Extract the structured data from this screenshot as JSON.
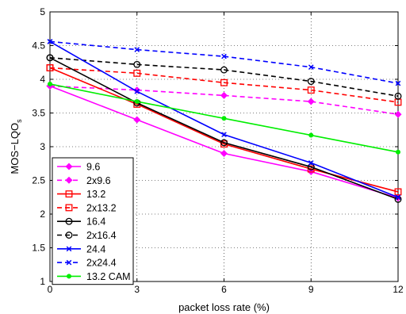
{
  "chart_data": {
    "type": "line",
    "xlabel": "packet loss rate (%)",
    "ylabel": "MOS−LQO",
    "ylabel_subscript": "s",
    "x": [
      0,
      3,
      6,
      9,
      12
    ],
    "xticks": [
      "0",
      "3",
      "6",
      "9",
      "12"
    ],
    "yticks": [
      "1",
      "1.5",
      "2",
      "2.5",
      "3",
      "3.5",
      "4",
      "4.5",
      "5"
    ],
    "xlim": [
      0,
      12
    ],
    "ylim": [
      1,
      5
    ],
    "grid": true,
    "legend_position": "bottom-left",
    "series": [
      {
        "name": "9.6",
        "values": [
          3.9,
          3.4,
          2.9,
          2.63,
          2.24
        ],
        "color": "#ff00ff",
        "dash": "solid",
        "marker": "diamond"
      },
      {
        "name": "2x9.6",
        "values": [
          3.9,
          3.84,
          3.76,
          3.67,
          3.48
        ],
        "color": "#ff00ff",
        "dash": "dashed",
        "marker": "diamond"
      },
      {
        "name": "13.2",
        "values": [
          4.17,
          3.63,
          3.04,
          2.67,
          2.33
        ],
        "color": "#ff0000",
        "dash": "solid",
        "marker": "square"
      },
      {
        "name": "2x13.2",
        "values": [
          4.17,
          4.09,
          3.95,
          3.84,
          3.66
        ],
        "color": "#ff0000",
        "dash": "dashed",
        "marker": "square"
      },
      {
        "name": "16.4",
        "values": [
          4.32,
          3.65,
          3.06,
          2.7,
          2.22
        ],
        "color": "#000000",
        "dash": "solid",
        "marker": "circle"
      },
      {
        "name": "2x16.4",
        "values": [
          4.32,
          4.22,
          4.14,
          3.97,
          3.75
        ],
        "color": "#000000",
        "dash": "dashed",
        "marker": "circle"
      },
      {
        "name": "24.4",
        "values": [
          4.56,
          3.82,
          3.18,
          2.76,
          2.25
        ],
        "color": "#0000ff",
        "dash": "solid",
        "marker": "x"
      },
      {
        "name": "2x24.4",
        "values": [
          4.56,
          4.44,
          4.34,
          4.18,
          3.94
        ],
        "color": "#0000ff",
        "dash": "dashed",
        "marker": "x"
      },
      {
        "name": "13.2 CAM",
        "values": [
          3.93,
          3.67,
          3.42,
          3.17,
          2.92
        ],
        "color": "#00ee00",
        "dash": "solid",
        "marker": "dot"
      }
    ]
  }
}
